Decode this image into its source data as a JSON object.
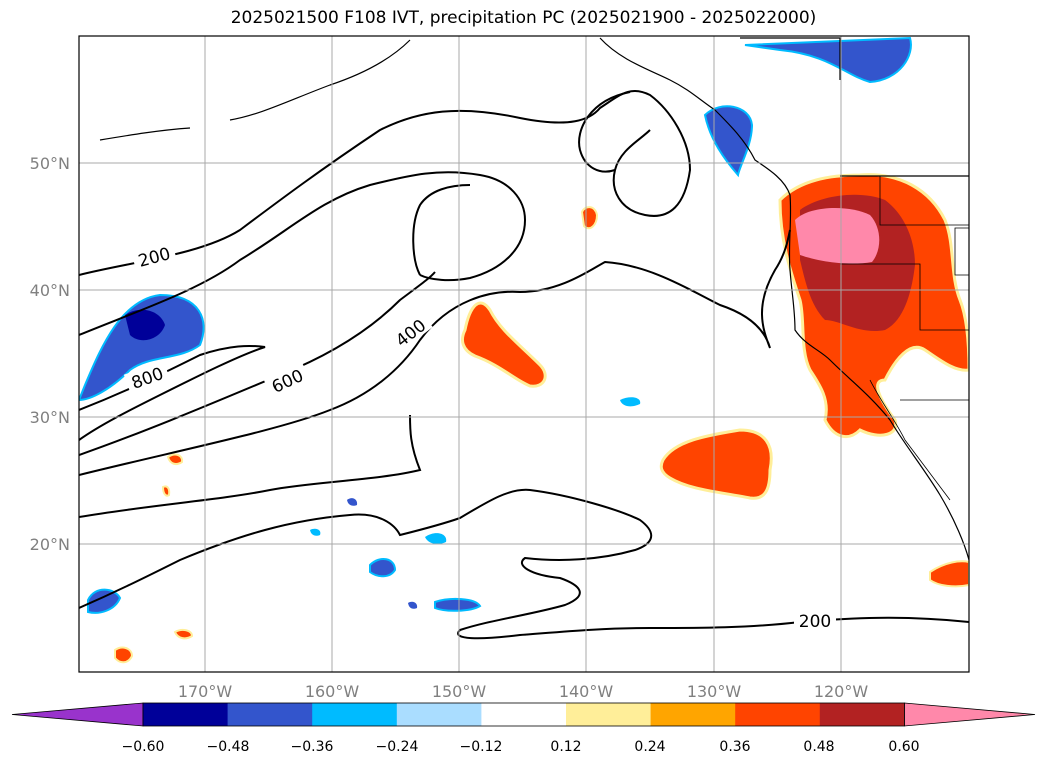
{
  "title": "2025021500 F108 IVT, precipitation PC (2025021900 - 2025022000)",
  "lat_ticks": [
    "50°N",
    "40°N",
    "30°N",
    "20°N"
  ],
  "lon_ticks": [
    "170°W",
    "160°W",
    "150°W",
    "140°W",
    "130°W",
    "120°W"
  ],
  "contour_labels": [
    "200",
    "400",
    "600",
    "800",
    "200"
  ],
  "colorbar": {
    "levels": [
      "−0.60",
      "−0.48",
      "−0.36",
      "−0.24",
      "−0.12",
      "0.12",
      "0.24",
      "0.36",
      "0.48",
      "0.60"
    ],
    "colors": [
      "#9933cc",
      "#000099",
      "#3355cc",
      "#00bbff",
      "#aaddff",
      "#ffffff",
      "#ffee99",
      "#ffa500",
      "#ff4400",
      "#b22222",
      "#ff88aa"
    ]
  }
}
